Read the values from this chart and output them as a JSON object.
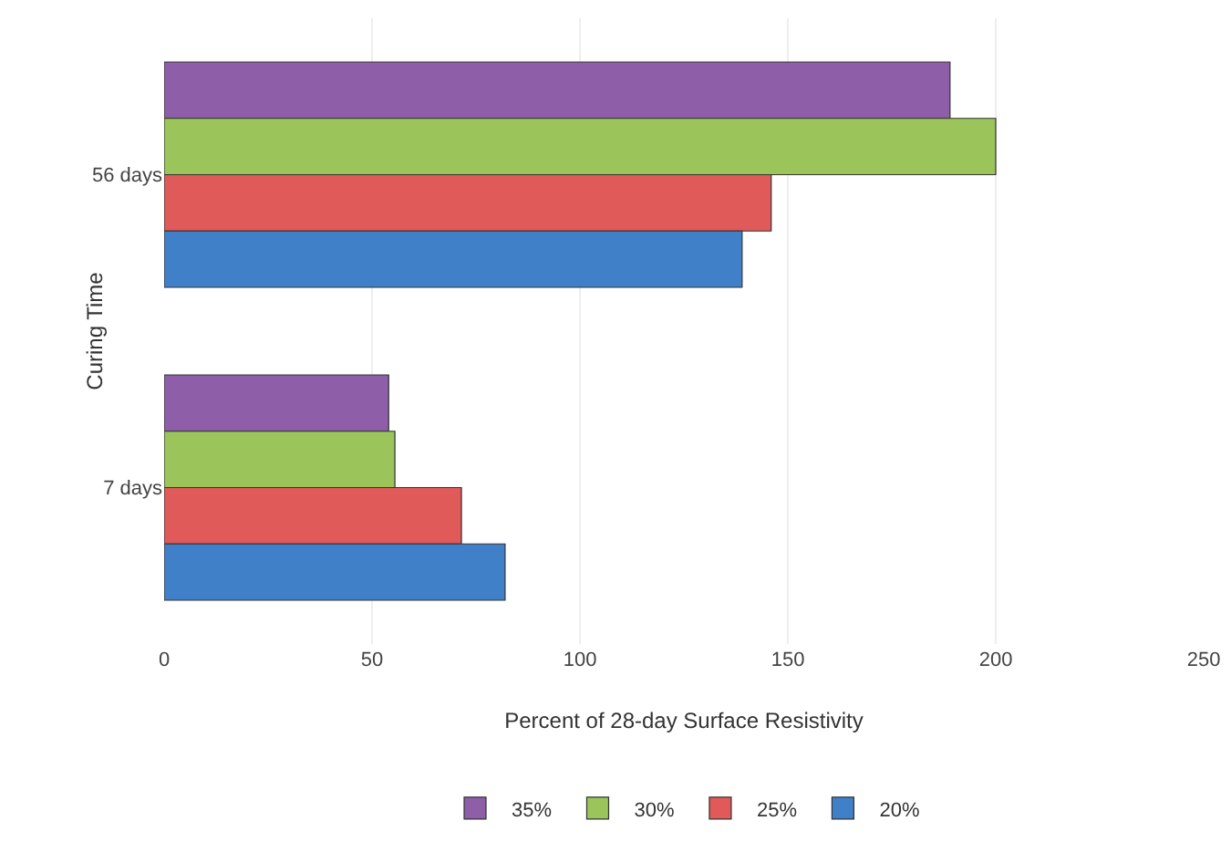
{
  "chart_data": {
    "type": "bar",
    "orientation": "horizontal",
    "xlabel": "Percent of 28-day Surface Resistivity",
    "ylabel": "Curing Time",
    "categories": [
      "56 days",
      "7 days"
    ],
    "series": [
      {
        "name": "35%",
        "color": "#8e5ea8",
        "values": [
          189,
          54
        ]
      },
      {
        "name": "30%",
        "color": "#9bc45a",
        "values": [
          200,
          55.5
        ]
      },
      {
        "name": "25%",
        "color": "#e05a5a",
        "values": [
          146,
          71.5
        ]
      },
      {
        "name": "20%",
        "color": "#4080c8",
        "values": [
          139,
          82
        ]
      }
    ],
    "xlim": [
      0,
      250
    ],
    "xticks": [
      0,
      50,
      100,
      150,
      200,
      250
    ],
    "grid": "x",
    "legend": "bottom"
  }
}
